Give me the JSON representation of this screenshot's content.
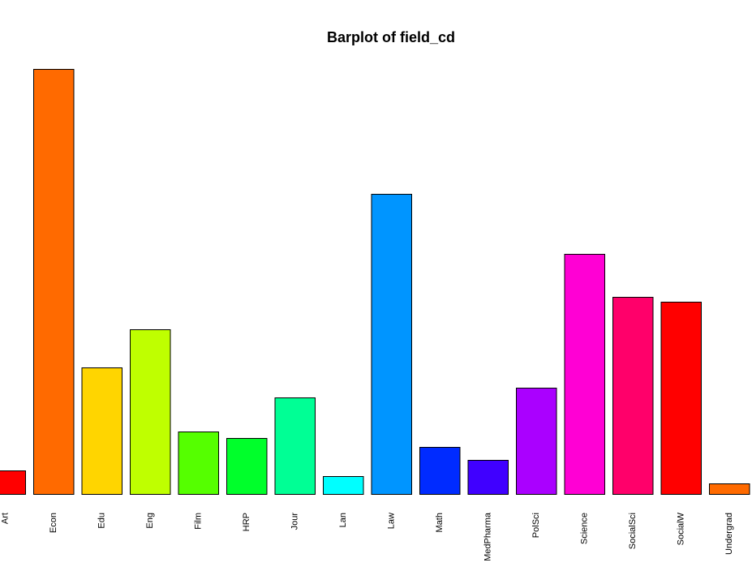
{
  "chart_data": {
    "type": "bar",
    "title": "Barplot of field_cd",
    "xlabel": "",
    "ylabel": "",
    "categories": [
      "Art",
      "Econ",
      "Edu",
      "Eng",
      "Film",
      "HRP",
      "Jour",
      "Lan",
      "Law",
      "Math",
      "MedPharma",
      "PolSci",
      "Science",
      "SocialSci",
      "SocialW",
      "Undergrad"
    ],
    "values": [
      29,
      524,
      156,
      203,
      77,
      69,
      119,
      22,
      370,
      58,
      42,
      131,
      296,
      243,
      237,
      13
    ],
    "colors": [
      "#FF0000",
      "#FF6A00",
      "#FFD500",
      "#BFFF00",
      "#55FF00",
      "#00FF2B",
      "#00FF95",
      "#00FFFF",
      "#0095FF",
      "#002BFF",
      "#4000FF",
      "#AA00FF",
      "#FF00D4",
      "#FF006A",
      "#FF0000",
      "#FF6A00"
    ],
    "ylim": [
      0,
      524
    ],
    "grid": false,
    "legend": "none",
    "axes_shown": false,
    "tick_label_orientation": "vertical"
  }
}
